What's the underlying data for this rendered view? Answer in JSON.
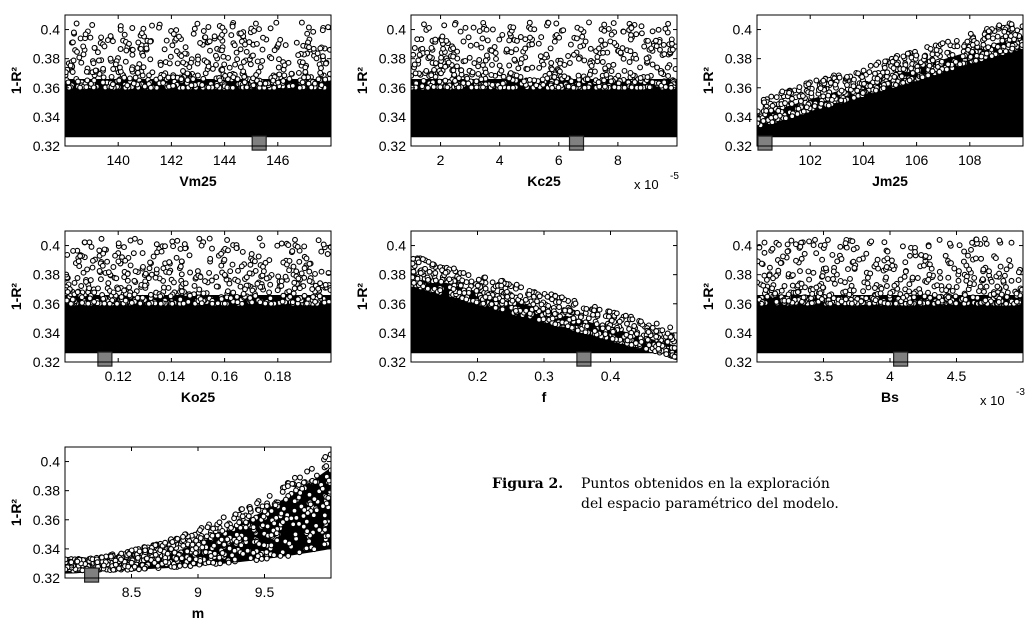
{
  "caption": {
    "label": "Figura 2.",
    "line1": "Puntos obtenidos en la exploración",
    "line2": "del espacio paramétrico del modelo."
  },
  "chart_data": [
    {
      "type": "scatter",
      "xlabel": "Vm25",
      "ylabel": "1-R²",
      "xlim": [
        138,
        148
      ],
      "ylim": [
        0.32,
        0.41
      ],
      "xticks": [
        140,
        142,
        144,
        146
      ],
      "xtick_labels": [
        "140",
        "142",
        "144",
        "146"
      ],
      "yticks": [
        0.32,
        0.34,
        0.36,
        0.38,
        0.4
      ],
      "ytick_labels": [
        "0.32",
        "0.34",
        "0.36",
        "0.38",
        "0.4"
      ],
      "exponent_label": "",
      "pattern": "uniform",
      "best_point": {
        "x": 145.3,
        "y": 0.322
      },
      "marker_color": "#808080"
    },
    {
      "type": "scatter",
      "xlabel": "Kc25",
      "ylabel": "1-R²",
      "xlim": [
        1,
        10
      ],
      "ylim": [
        0.32,
        0.41
      ],
      "xticks": [
        2,
        4,
        6,
        8
      ],
      "xtick_labels": [
        "2",
        "4",
        "6",
        "8"
      ],
      "yticks": [
        0.32,
        0.34,
        0.36,
        0.38,
        0.4
      ],
      "ytick_labels": [
        "0.32",
        "0.34",
        "0.36",
        "0.38",
        "0.4"
      ],
      "exponent_label": "x 10",
      "exponent_power": "-5",
      "pattern": "uniform",
      "best_point": {
        "x": 6.6,
        "y": 0.322
      },
      "marker_color": "#808080"
    },
    {
      "type": "scatter",
      "xlabel": "Jm25",
      "ylabel": "1-R²",
      "xlim": [
        100,
        110
      ],
      "ylim": [
        0.32,
        0.41
      ],
      "xticks": [
        102,
        104,
        106,
        108
      ],
      "xtick_labels": [
        "102",
        "104",
        "106",
        "108"
      ],
      "yticks": [
        0.32,
        0.34,
        0.36,
        0.38,
        0.4
      ],
      "ytick_labels": [
        "0.32",
        "0.34",
        "0.36",
        "0.38",
        "0.4"
      ],
      "exponent_label": "",
      "pattern": "rising",
      "best_point": {
        "x": 100.3,
        "y": 0.322
      },
      "marker_color": "#808080"
    },
    {
      "type": "scatter",
      "xlabel": "Ko25",
      "ylabel": "1-R²",
      "xlim": [
        0.1,
        0.2
      ],
      "ylim": [
        0.32,
        0.41
      ],
      "xticks": [
        0.12,
        0.14,
        0.16,
        0.18
      ],
      "xtick_labels": [
        "0.12",
        "0.14",
        "0.16",
        "0.18"
      ],
      "yticks": [
        0.32,
        0.34,
        0.36,
        0.38,
        0.4
      ],
      "ytick_labels": [
        "0.32",
        "0.34",
        "0.36",
        "0.38",
        "0.4"
      ],
      "exponent_label": "",
      "pattern": "uniform",
      "best_point": {
        "x": 0.115,
        "y": 0.322
      },
      "marker_color": "#808080"
    },
    {
      "type": "scatter",
      "xlabel": "f",
      "ylabel": "1-R²",
      "xlim": [
        0.1,
        0.5
      ],
      "ylim": [
        0.32,
        0.41
      ],
      "xticks": [
        0.2,
        0.3,
        0.4
      ],
      "xtick_labels": [
        "0.2",
        "0.3",
        "0.4"
      ],
      "yticks": [
        0.32,
        0.34,
        0.36,
        0.38,
        0.4
      ],
      "ytick_labels": [
        "0.32",
        "0.34",
        "0.36",
        "0.38",
        "0.4"
      ],
      "exponent_label": "",
      "pattern": "falling",
      "best_point": {
        "x": 0.36,
        "y": 0.322
      },
      "marker_color": "#808080"
    },
    {
      "type": "scatter",
      "xlabel": "Bs",
      "ylabel": "1-R²",
      "xlim": [
        3,
        5
      ],
      "ylim": [
        0.32,
        0.41
      ],
      "xticks": [
        3.5,
        4,
        4.5
      ],
      "xtick_labels": [
        "3.5",
        "4",
        "4.5"
      ],
      "yticks": [
        0.32,
        0.34,
        0.36,
        0.38,
        0.4
      ],
      "ytick_labels": [
        "0.32",
        "0.34",
        "0.36",
        "0.38",
        "0.4"
      ],
      "exponent_label": "x 10",
      "exponent_power": "-3",
      "pattern": "uniform",
      "best_point": {
        "x": 4.08,
        "y": 0.322
      },
      "marker_color": "#808080"
    },
    {
      "type": "scatter",
      "xlabel": "m",
      "ylabel": "1-R²",
      "xlim": [
        8,
        10
      ],
      "ylim": [
        0.32,
        0.41
      ],
      "xticks": [
        8.5,
        9,
        9.5
      ],
      "xtick_labels": [
        "8.5",
        "9",
        "9.5"
      ],
      "yticks": [
        0.32,
        0.34,
        0.36,
        0.38,
        0.4
      ],
      "ytick_labels": [
        "0.32",
        "0.34",
        "0.36",
        "0.38",
        "0.4"
      ],
      "exponent_label": "",
      "pattern": "curve",
      "best_point": {
        "x": 8.2,
        "y": 0.322
      },
      "marker_color": "#808080"
    }
  ]
}
